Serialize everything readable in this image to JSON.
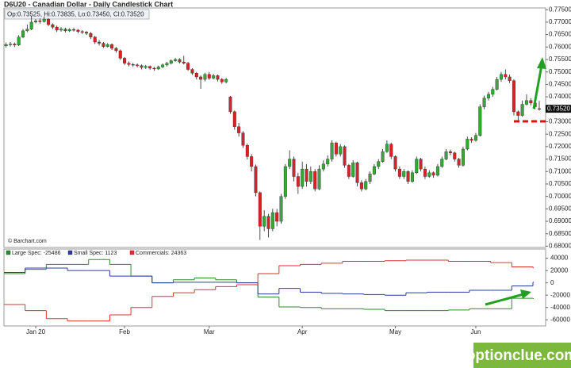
{
  "title": "D6U20 - Canadian Dollar - Daily Candlestick Chart",
  "info": "Op:0.73525, Hi:0.73835, Lo:0.73450, Cl:0.73520",
  "source": "© Barchart.com",
  "watermark": "optionclue.com",
  "chart_data": [
    {
      "type": "candlestick",
      "up_color": "#33aa33",
      "down_color": "#e02020",
      "xlim": [
        -0.5,
        127.5
      ],
      "ylim": [
        0.6795,
        0.7757
      ],
      "yticks": [
        {
          "value": 0.775,
          "label": "0.77500"
        },
        {
          "value": 0.77,
          "label": "0.77000"
        },
        {
          "value": 0.765,
          "label": "0.76500"
        },
        {
          "value": 0.76,
          "label": "0.76000"
        },
        {
          "value": 0.755,
          "label": "0.75500"
        },
        {
          "value": 0.75,
          "label": "0.75000"
        },
        {
          "value": 0.745,
          "label": "0.74500"
        },
        {
          "value": 0.74,
          "label": "0.74000"
        },
        {
          "value": 0.735,
          "label": "0.73500"
        },
        {
          "value": 0.73,
          "label": "0.73000"
        },
        {
          "value": 0.725,
          "label": "0.72500"
        },
        {
          "value": 0.72,
          "label": "0.72000"
        },
        {
          "value": 0.715,
          "label": "0.71500"
        },
        {
          "value": 0.71,
          "label": "0.71000"
        },
        {
          "value": 0.705,
          "label": "0.70500"
        },
        {
          "value": 0.7,
          "label": "0.70000"
        },
        {
          "value": 0.695,
          "label": "0.69500"
        },
        {
          "value": 0.69,
          "label": "0.69000"
        },
        {
          "value": 0.685,
          "label": "0.68500"
        },
        {
          "value": 0.68,
          "label": "0.68000"
        }
      ],
      "last_price": {
        "value": 0.7352,
        "label": "0.73520"
      },
      "candles": [
        [
          0.7605,
          0.7618,
          0.7598,
          0.761
        ],
        [
          0.761,
          0.762,
          0.7602,
          0.7612
        ],
        [
          0.7612,
          0.7618,
          0.76,
          0.7608
        ],
        [
          0.7608,
          0.7648,
          0.7604,
          0.764
        ],
        [
          0.764,
          0.7672,
          0.7635,
          0.7665
        ],
        [
          0.7665,
          0.769,
          0.766,
          0.7672
        ],
        [
          0.7672,
          0.7725,
          0.7668,
          0.77
        ],
        [
          0.77,
          0.7712,
          0.7695,
          0.7705
        ],
        [
          0.7705,
          0.7715,
          0.7694,
          0.7702
        ],
        [
          0.7702,
          0.7722,
          0.7698,
          0.7712
        ],
        [
          0.7712,
          0.7716,
          0.7684,
          0.769
        ],
        [
          0.769,
          0.7695,
          0.7672,
          0.768
        ],
        [
          0.768,
          0.7686,
          0.766,
          0.7668
        ],
        [
          0.7668,
          0.768,
          0.7662,
          0.7672
        ],
        [
          0.7672,
          0.7678,
          0.7658,
          0.7665
        ],
        [
          0.7665,
          0.7676,
          0.766,
          0.767
        ],
        [
          0.767,
          0.7678,
          0.7662,
          0.7668
        ],
        [
          0.7668,
          0.7672,
          0.7655,
          0.7662
        ],
        [
          0.7662,
          0.7668,
          0.7652,
          0.766
        ],
        [
          0.766,
          0.7664,
          0.7648,
          0.7655
        ],
        [
          0.7655,
          0.766,
          0.7632,
          0.764
        ],
        [
          0.764,
          0.7645,
          0.7612,
          0.762
        ],
        [
          0.762,
          0.7628,
          0.7606,
          0.7615
        ],
        [
          0.7615,
          0.762,
          0.7596,
          0.7602
        ],
        [
          0.7602,
          0.7616,
          0.7598,
          0.761
        ],
        [
          0.761,
          0.7614,
          0.7588,
          0.7595
        ],
        [
          0.7595,
          0.76,
          0.7578,
          0.7585
        ],
        [
          0.7585,
          0.759,
          0.7548,
          0.7555
        ],
        [
          0.7555,
          0.756,
          0.7528,
          0.7535
        ],
        [
          0.7535,
          0.7542,
          0.7522,
          0.753
        ],
        [
          0.753,
          0.7536,
          0.752,
          0.7528
        ],
        [
          0.7528,
          0.7534,
          0.7518,
          0.7525
        ],
        [
          0.7525,
          0.753,
          0.751,
          0.7518
        ],
        [
          0.7518,
          0.7528,
          0.7512,
          0.7522
        ],
        [
          0.7522,
          0.7526,
          0.7508,
          0.7515
        ],
        [
          0.7515,
          0.752,
          0.7504,
          0.7512
        ],
        [
          0.7512,
          0.7526,
          0.7508,
          0.752
        ],
        [
          0.752,
          0.7534,
          0.7515,
          0.7528
        ],
        [
          0.7528,
          0.754,
          0.7522,
          0.7535
        ],
        [
          0.7535,
          0.755,
          0.753,
          0.7545
        ],
        [
          0.7545,
          0.7556,
          0.754,
          0.755
        ],
        [
          0.755,
          0.7555,
          0.7534,
          0.754
        ],
        [
          0.754,
          0.7565,
          0.753,
          0.7535
        ],
        [
          0.7535,
          0.754,
          0.7504,
          0.751
        ],
        [
          0.751,
          0.7515,
          0.7488,
          0.7495
        ],
        [
          0.7495,
          0.75,
          0.747,
          0.748
        ],
        [
          0.748,
          0.7486,
          0.7432,
          0.747
        ],
        [
          0.747,
          0.7496,
          0.7462,
          0.749
        ],
        [
          0.749,
          0.75,
          0.7468,
          0.7475
        ],
        [
          0.7475,
          0.7492,
          0.747,
          0.7485
        ],
        [
          0.7485,
          0.749,
          0.7462,
          0.747
        ],
        [
          0.747,
          0.7476,
          0.7452,
          0.746
        ],
        [
          0.746,
          0.7476,
          0.7454,
          0.747
        ],
        [
          0.74,
          0.7404,
          0.7332,
          0.734
        ],
        [
          0.734,
          0.7345,
          0.7268,
          0.728
        ],
        [
          0.728,
          0.7295,
          0.724,
          0.7255
        ],
        [
          0.7255,
          0.7262,
          0.7195,
          0.7205
        ],
        [
          0.7205,
          0.7212,
          0.7148,
          0.716
        ],
        [
          0.716,
          0.717,
          0.71,
          0.712
        ],
        [
          0.712,
          0.7128,
          0.7,
          0.7015
        ],
        [
          0.7015,
          0.702,
          0.6825,
          0.688
        ],
        [
          0.688,
          0.6945,
          0.686,
          0.692
        ],
        [
          0.692,
          0.693,
          0.6835,
          0.687
        ],
        [
          0.687,
          0.695,
          0.686,
          0.6935
        ],
        [
          0.6935,
          0.695,
          0.688,
          0.69
        ],
        [
          0.69,
          0.701,
          0.689,
          0.7
        ],
        [
          0.7,
          0.713,
          0.699,
          0.712
        ],
        [
          0.712,
          0.7185,
          0.711,
          0.715
        ],
        [
          0.715,
          0.716,
          0.706,
          0.708
        ],
        [
          0.708,
          0.7095,
          0.701,
          0.704
        ],
        [
          0.704,
          0.714,
          0.703,
          0.711
        ],
        [
          0.711,
          0.713,
          0.704,
          0.706
        ],
        [
          0.706,
          0.712,
          0.705,
          0.71
        ],
        [
          0.71,
          0.711,
          0.702,
          0.703
        ],
        [
          0.703,
          0.7125,
          0.7025,
          0.711
        ],
        [
          0.711,
          0.7145,
          0.71,
          0.713
        ],
        [
          0.713,
          0.7165,
          0.712,
          0.715
        ],
        [
          0.715,
          0.7225,
          0.714,
          0.7215
        ],
        [
          0.7215,
          0.722,
          0.716,
          0.717
        ],
        [
          0.717,
          0.721,
          0.716,
          0.72
        ],
        [
          0.72,
          0.7205,
          0.7115,
          0.7125
        ],
        [
          0.7125,
          0.713,
          0.707,
          0.708
        ],
        [
          0.708,
          0.7145,
          0.7075,
          0.7135
        ],
        [
          0.7135,
          0.714,
          0.704,
          0.7055
        ],
        [
          0.7055,
          0.7065,
          0.702,
          0.703
        ],
        [
          0.703,
          0.707,
          0.7025,
          0.706
        ],
        [
          0.706,
          0.71,
          0.705,
          0.709
        ],
        [
          0.709,
          0.713,
          0.7085,
          0.712
        ],
        [
          0.712,
          0.715,
          0.711,
          0.714
        ],
        [
          0.714,
          0.719,
          0.7135,
          0.718
        ],
        [
          0.718,
          0.7225,
          0.7175,
          0.721
        ],
        [
          0.721,
          0.7215,
          0.715,
          0.716
        ],
        [
          0.716,
          0.7165,
          0.71,
          0.711
        ],
        [
          0.711,
          0.712,
          0.707,
          0.708
        ],
        [
          0.708,
          0.711,
          0.707,
          0.71
        ],
        [
          0.71,
          0.7105,
          0.705,
          0.706
        ],
        [
          0.706,
          0.7105,
          0.7055,
          0.7095
        ],
        [
          0.7095,
          0.716,
          0.709,
          0.715
        ],
        [
          0.715,
          0.7155,
          0.71,
          0.711
        ],
        [
          0.711,
          0.712,
          0.707,
          0.708
        ],
        [
          0.708,
          0.7105,
          0.7075,
          0.7095
        ],
        [
          0.7095,
          0.71,
          0.7075,
          0.7085
        ],
        [
          0.7085,
          0.713,
          0.708,
          0.712
        ],
        [
          0.712,
          0.716,
          0.7115,
          0.715
        ],
        [
          0.715,
          0.719,
          0.7145,
          0.718
        ],
        [
          0.718,
          0.7188,
          0.7165,
          0.7175
        ],
        [
          0.7175,
          0.718,
          0.714,
          0.715
        ],
        [
          0.715,
          0.7155,
          0.7115,
          0.7125
        ],
        [
          0.7125,
          0.72,
          0.712,
          0.719
        ],
        [
          0.719,
          0.724,
          0.7185,
          0.723
        ],
        [
          0.723,
          0.7238,
          0.7215,
          0.7225
        ],
        [
          0.7225,
          0.7255,
          0.722,
          0.7245
        ],
        [
          0.7245,
          0.737,
          0.724,
          0.736
        ],
        [
          0.736,
          0.7405,
          0.735,
          0.7395
        ],
        [
          0.7395,
          0.742,
          0.7385,
          0.741
        ],
        [
          0.741,
          0.744,
          0.74,
          0.743
        ],
        [
          0.743,
          0.748,
          0.7425,
          0.747
        ],
        [
          0.747,
          0.75,
          0.746,
          0.749
        ],
        [
          0.749,
          0.751,
          0.747,
          0.748
        ],
        [
          0.748,
          0.749,
          0.7455,
          0.7465
        ],
        [
          0.7465,
          0.747,
          0.7325,
          0.734
        ],
        [
          0.734,
          0.7345,
          0.7305,
          0.7325
        ],
        [
          0.7325,
          0.7385,
          0.732,
          0.737
        ],
        [
          0.737,
          0.741,
          0.7365,
          0.7385
        ],
        [
          0.7385,
          0.7395,
          0.7365,
          0.7375
        ],
        [
          0.7375,
          0.74,
          0.735,
          0.736
        ],
        [
          0.73525,
          0.73835,
          0.7345,
          0.7352
        ]
      ]
    },
    {
      "type": "step",
      "xlim": [
        -0.5,
        127.5
      ],
      "ylim": [
        -70000,
        55000
      ],
      "yticks": [
        40000,
        20000,
        0,
        -20000,
        -40000,
        -60000
      ],
      "xticks": [
        {
          "value": 7,
          "label": "Jan 20"
        },
        {
          "value": 28,
          "label": "Feb"
        },
        {
          "value": 48,
          "label": "Mar"
        },
        {
          "value": 70,
          "label": "Apr"
        },
        {
          "value": 92,
          "label": "May"
        },
        {
          "value": 111,
          "label": "Jun"
        }
      ],
      "x": [
        0,
        5,
        10,
        15,
        20,
        25,
        30,
        35,
        40,
        45,
        50,
        55,
        60,
        65,
        70,
        75,
        80,
        85,
        90,
        95,
        100,
        105,
        110,
        115,
        120,
        125
      ],
      "series": [
        {
          "name": "Large Spec: -25486",
          "color": "#2e8b2e",
          "values": [
            15000,
            22000,
            30000,
            30000,
            38000,
            30000,
            11000,
            0,
            5000,
            8000,
            5000,
            0,
            -23000,
            -39000,
            -40000,
            -42000,
            -42000,
            -43000,
            -45000,
            -45000,
            -45000,
            -44000,
            -42000,
            -42000,
            -25000,
            -25486
          ]
        },
        {
          "name": "Small Spec: 1123",
          "color": "#2a3aa8",
          "values": [
            17000,
            24000,
            24000,
            20000,
            20000,
            11000,
            11000,
            0,
            1000,
            1000,
            1000,
            0,
            -18000,
            -9000,
            -15000,
            -17000,
            -18000,
            -19000,
            -20000,
            -16000,
            -15000,
            -15000,
            -12000,
            -12000,
            -5000,
            1123
          ]
        },
        {
          "name": "Commercials: 24363",
          "color": "#e03030",
          "values": [
            -35000,
            -45000,
            -58000,
            -62000,
            -62000,
            -52000,
            -40000,
            -22000,
            -16000,
            -11000,
            -6000,
            -3000,
            15000,
            28000,
            30000,
            32000,
            35000,
            35000,
            36000,
            37000,
            37000,
            35000,
            35000,
            33000,
            26000,
            24363
          ]
        }
      ]
    }
  ]
}
